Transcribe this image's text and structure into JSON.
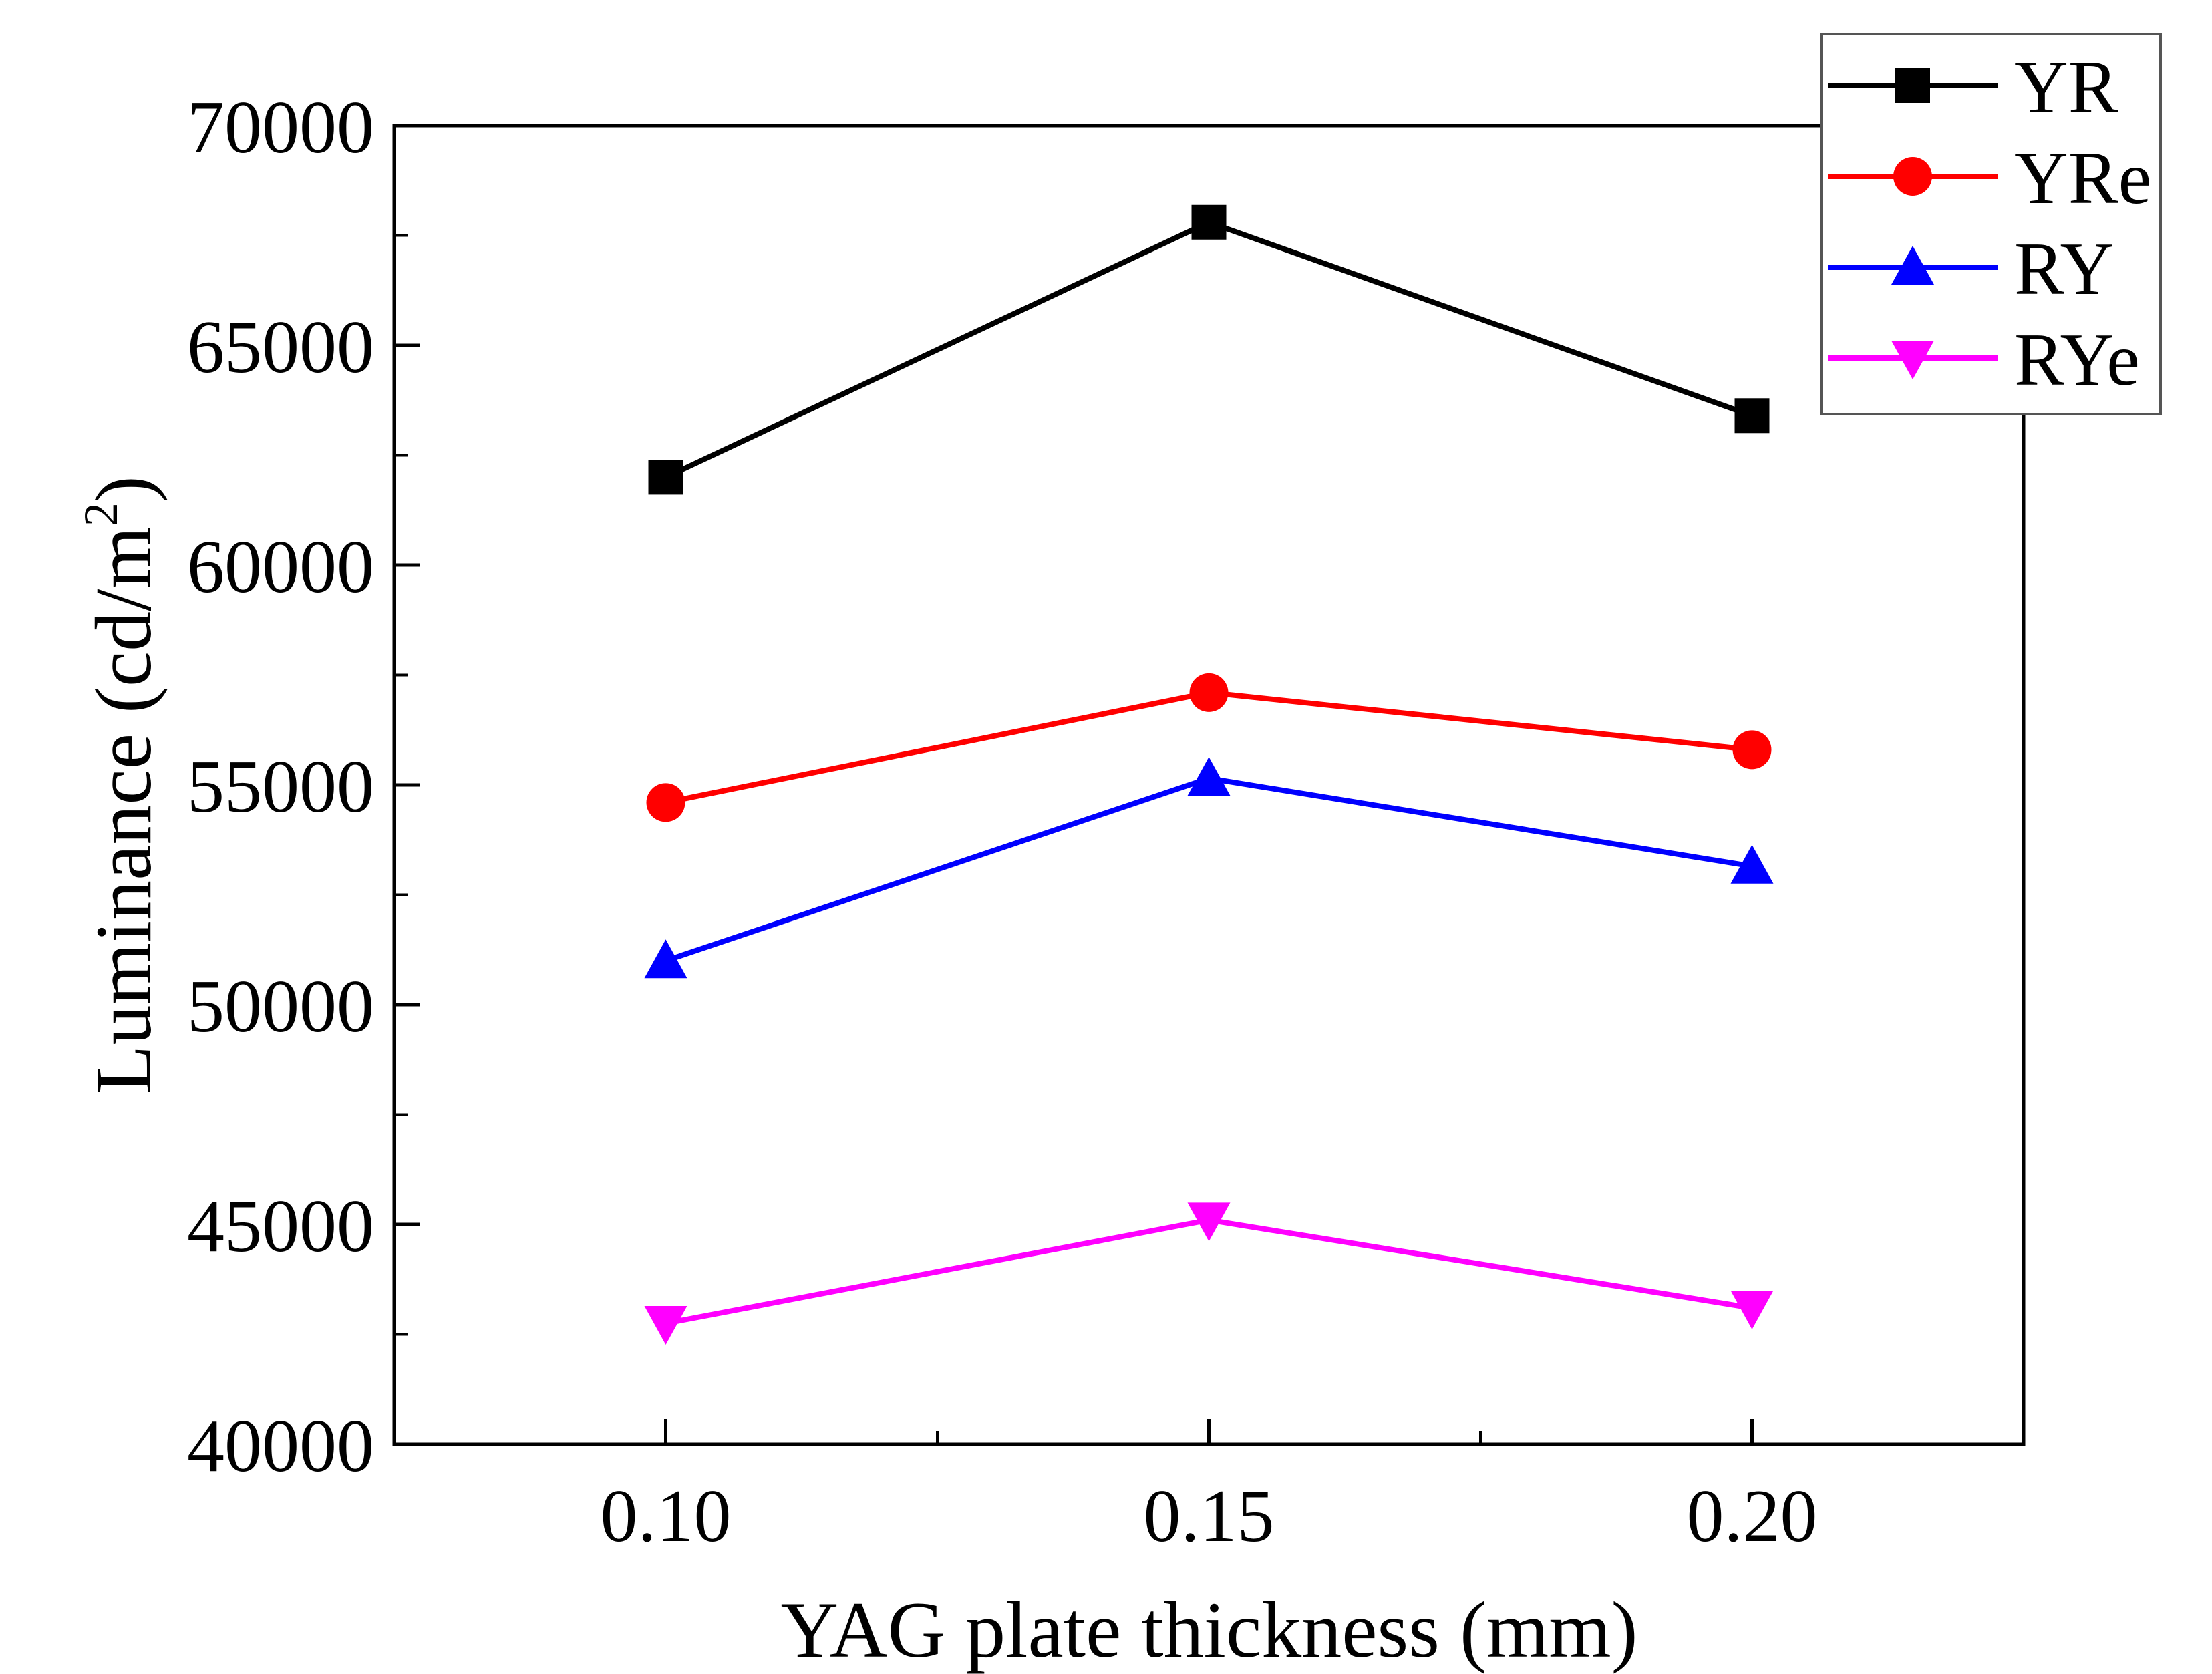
{
  "chart_data": {
    "type": "line",
    "title": "",
    "xlabel": "YAG plate thickness (mm)",
    "ylabel": "Luminance (cd/m",
    "ylabel_sup": "2",
    "ylabel_close": ")",
    "x": [
      0.1,
      0.15,
      0.2
    ],
    "xlim": [
      0.075,
      0.225
    ],
    "ylim": [
      40000,
      70000
    ],
    "xticks": [
      "0.10",
      "0.15",
      "0.20"
    ],
    "xtick_values": [
      0.1,
      0.15,
      0.2
    ],
    "xminor": [
      0.125,
      0.175
    ],
    "yticks": [
      "40000",
      "45000",
      "50000",
      "55000",
      "60000",
      "65000",
      "70000"
    ],
    "ytick_values": [
      40000,
      45000,
      50000,
      55000,
      60000,
      65000,
      70000
    ],
    "grid": false,
    "legend_placement": "top-right",
    "series": [
      {
        "name": "YR",
        "color": "#000000",
        "marker": "square",
        "values": [
          62000,
          67800,
          63400
        ]
      },
      {
        "name": "YRe",
        "color": "#ff0000",
        "marker": "circle",
        "values": [
          54600,
          57100,
          55800
        ]
      },
      {
        "name": "RY",
        "color": "#0000ff",
        "marker": "triangle-up",
        "values": [
          51000,
          55150,
          53150
        ]
      },
      {
        "name": "RYe",
        "color": "#ff00ff",
        "marker": "triangle-down",
        "values": [
          42750,
          45100,
          43100
        ]
      }
    ]
  }
}
